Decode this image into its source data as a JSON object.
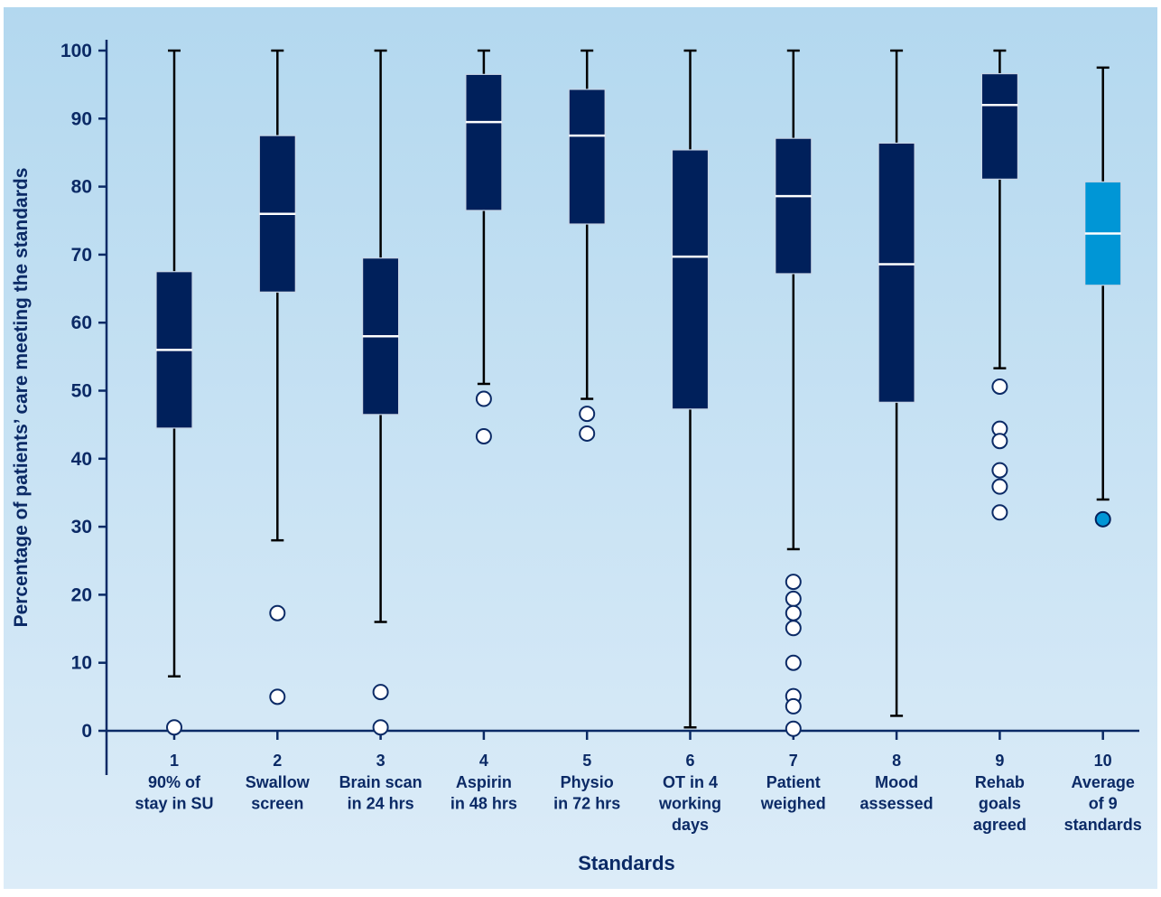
{
  "chart_data": {
    "type": "boxplot",
    "title": "",
    "xlabel": "Standards",
    "ylabel": "Percentage of patients’ care meeting the standards",
    "ylim": [
      0,
      100
    ],
    "yticks": [
      0,
      10,
      20,
      30,
      40,
      50,
      60,
      70,
      80,
      90,
      100
    ],
    "grid": false,
    "legend": "none",
    "colors": {
      "box": "#00205b",
      "box_highlight": "#0096d6",
      "median": "#ffffff",
      "whisker": "#000000",
      "axis": "#0b2a66",
      "text": "#0b2a66",
      "background_top": "#b3d8ef",
      "background_bottom": "#dcecf8"
    },
    "categories": [
      {
        "number": "1",
        "lines": [
          "90% of",
          "stay in SU"
        ],
        "whisker_low": 8,
        "q1": 44.5,
        "median": 56,
        "q3": 67.5,
        "whisker_high": 100,
        "outliers": [
          0.5
        ],
        "highlight": false
      },
      {
        "number": "2",
        "lines": [
          "Swallow",
          "screen"
        ],
        "whisker_low": 28,
        "q1": 64.5,
        "median": 76,
        "q3": 87.5,
        "whisker_high": 100,
        "outliers": [
          17.3,
          5
        ],
        "highlight": false
      },
      {
        "number": "3",
        "lines": [
          "Brain scan",
          "in 24 hrs"
        ],
        "whisker_low": 16,
        "q1": 46.5,
        "median": 58,
        "q3": 69.5,
        "whisker_high": 100,
        "outliers": [
          5.7,
          0.5
        ],
        "highlight": false
      },
      {
        "number": "4",
        "lines": [
          "Aspirin",
          "in 48 hrs"
        ],
        "whisker_low": 51,
        "q1": 76.5,
        "median": 89.5,
        "q3": 96.5,
        "whisker_high": 100,
        "outliers": [
          48.8,
          43.3
        ],
        "highlight": false
      },
      {
        "number": "5",
        "lines": [
          "Physio",
          "in 72 hrs"
        ],
        "whisker_low": 48.8,
        "q1": 74.5,
        "median": 87.5,
        "q3": 94.3,
        "whisker_high": 100,
        "outliers": [
          46.6,
          43.7
        ],
        "highlight": false
      },
      {
        "number": "6",
        "lines": [
          "OT in 4",
          "working",
          "days"
        ],
        "whisker_low": 0.5,
        "q1": 47.3,
        "median": 69.7,
        "q3": 85.4,
        "whisker_high": 100,
        "outliers": [],
        "highlight": false
      },
      {
        "number": "7",
        "lines": [
          "Patient",
          "weighed"
        ],
        "whisker_low": 26.7,
        "q1": 67.2,
        "median": 78.6,
        "q3": 87.1,
        "whisker_high": 100,
        "outliers": [
          21.9,
          19.4,
          17.3,
          15.1,
          10,
          5.1,
          3.6,
          0.3
        ],
        "highlight": false
      },
      {
        "number": "8",
        "lines": [
          "Mood",
          "assessed"
        ],
        "whisker_low": 2.2,
        "q1": 48.3,
        "median": 68.6,
        "q3": 86.4,
        "whisker_high": 100,
        "outliers": [],
        "highlight": false
      },
      {
        "number": "9",
        "lines": [
          "Rehab",
          "goals",
          "agreed"
        ],
        "whisker_low": 53.3,
        "q1": 81.1,
        "median": 92,
        "q3": 96.6,
        "whisker_high": 100,
        "outliers": [
          50.6,
          44.4,
          42.6,
          38.3,
          35.9,
          32.1
        ],
        "highlight": false
      },
      {
        "number": "10",
        "lines": [
          "Average",
          "of 9",
          "standards"
        ],
        "whisker_low": 34,
        "q1": 65.5,
        "median": 73.1,
        "q3": 80.7,
        "whisker_high": 97.5,
        "outliers": [
          31.1
        ],
        "highlight": true
      }
    ]
  }
}
